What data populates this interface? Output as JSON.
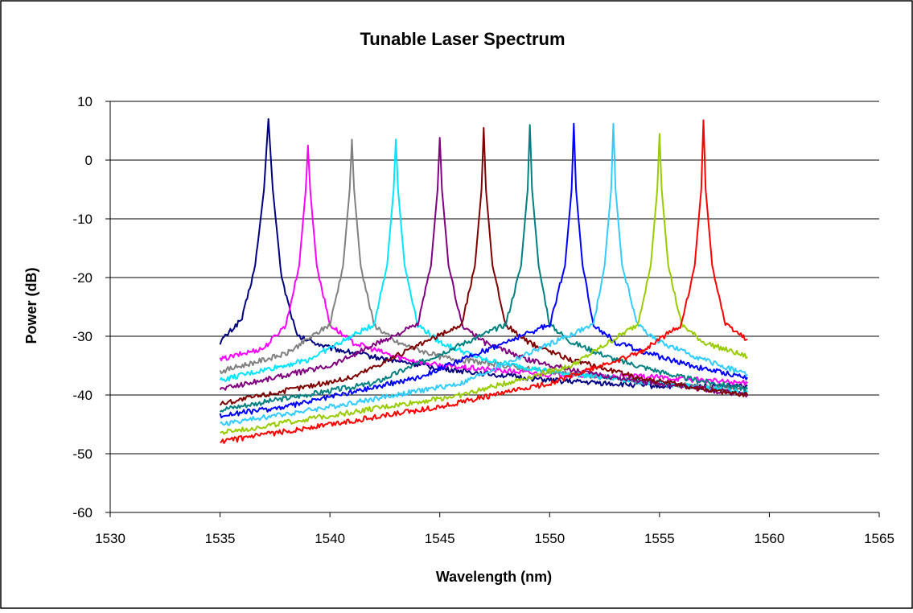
{
  "chart_data": {
    "type": "line",
    "title": "Tunable Laser Spectrum",
    "xlabel": "Wavelength (nm)",
    "ylabel": "Power (dB)",
    "xlim": [
      1530,
      1565
    ],
    "ylim": [
      -60,
      10
    ],
    "xticks": [
      1530,
      1535,
      1540,
      1545,
      1550,
      1555,
      1560,
      1565
    ],
    "yticks": [
      -60,
      -50,
      -40,
      -30,
      -20,
      -10,
      0,
      10
    ],
    "x_tick_labels": [
      "1530",
      "1535",
      "1540",
      "1545",
      "1550",
      "1555",
      "1560",
      "1565"
    ],
    "y_tick_labels": [
      "-60",
      "-50",
      "-40",
      "-30",
      "-20",
      "-10",
      "0",
      "10"
    ],
    "grid": "horizontal",
    "legend": "none",
    "series": [
      {
        "color": "#000080",
        "peak_x": 1537.2,
        "peak_y": 7.0,
        "x": [
          1535,
          1536,
          1536.6,
          1537.0,
          1537.2,
          1537.4,
          1537.8,
          1538.5,
          1540,
          1542,
          1545,
          1550,
          1555,
          1559
        ],
        "y": [
          -31,
          -27,
          -18,
          -5,
          7.0,
          -5,
          -20,
          -30,
          -32,
          -33.5,
          -35.5,
          -37.5,
          -38.5,
          -38.5
        ]
      },
      {
        "color": "#FF00FF",
        "peak_x": 1539.0,
        "peak_y": 2.5,
        "x": [
          1535,
          1537,
          1538,
          1538.6,
          1538.9,
          1539.0,
          1539.1,
          1539.4,
          1540,
          1541,
          1543,
          1545,
          1550,
          1555,
          1559
        ],
        "y": [
          -34,
          -32,
          -28,
          -18,
          -5,
          2.5,
          -5,
          -18,
          -28,
          -31,
          -33.5,
          -35,
          -36.5,
          -37,
          -38
        ]
      },
      {
        "color": "#808080",
        "peak_x": 1541.0,
        "peak_y": 3.5,
        "x": [
          1535,
          1538,
          1540,
          1540.6,
          1540.9,
          1541.0,
          1541.1,
          1541.4,
          1542,
          1543,
          1545,
          1550,
          1555,
          1559
        ],
        "y": [
          -36,
          -33,
          -28,
          -18,
          -5,
          3.5,
          -5,
          -18,
          -28,
          -31,
          -33.5,
          -36,
          -38,
          -39
        ]
      },
      {
        "color": "#00E5FF",
        "peak_x": 1543.0,
        "peak_y": 3.5,
        "x": [
          1535,
          1539,
          1542,
          1542.6,
          1542.9,
          1543.0,
          1543.1,
          1543.4,
          1544,
          1545,
          1547,
          1550,
          1555,
          1559
        ],
        "y": [
          -37.5,
          -34,
          -28,
          -18,
          -5,
          3.5,
          -5,
          -18,
          -28,
          -31,
          -34,
          -36,
          -38,
          -39.5
        ]
      },
      {
        "color": "#800080",
        "peak_x": 1545.0,
        "peak_y": 3.8,
        "x": [
          1535,
          1540,
          1544,
          1544.6,
          1544.9,
          1545.0,
          1545.1,
          1545.4,
          1546,
          1547,
          1549,
          1552,
          1556,
          1559
        ],
        "y": [
          -39,
          -35,
          -28,
          -18,
          -5,
          3.8,
          -5,
          -18,
          -28,
          -31,
          -34,
          -36.5,
          -38.5,
          -40
        ]
      },
      {
        "color": "#800000",
        "peak_x": 1547.0,
        "peak_y": 5.5,
        "x": [
          1535,
          1541,
          1546,
          1546.6,
          1546.9,
          1547.0,
          1547.1,
          1547.4,
          1548,
          1549,
          1551,
          1554,
          1557,
          1559
        ],
        "y": [
          -41.5,
          -37,
          -28,
          -18,
          -5,
          5.5,
          -5,
          -18,
          -28,
          -31,
          -34,
          -37,
          -39,
          -40
        ]
      },
      {
        "color": "#008080",
        "peak_x": 1549.1,
        "peak_y": 6.0,
        "x": [
          1535,
          1542,
          1548,
          1548.7,
          1549.0,
          1549.1,
          1549.2,
          1549.5,
          1550,
          1551,
          1553,
          1556,
          1559
        ],
        "y": [
          -42.5,
          -38,
          -28,
          -18,
          -5,
          6.0,
          -5,
          -18,
          -28,
          -31,
          -34,
          -37,
          -39
        ]
      },
      {
        "color": "#0000FF",
        "peak_x": 1551.1,
        "peak_y": 6.2,
        "x": [
          1535,
          1538,
          1544,
          1550,
          1550.7,
          1551.0,
          1551.1,
          1551.2,
          1551.5,
          1552,
          1553,
          1555,
          1557,
          1559
        ],
        "y": [
          -43.5,
          -42,
          -37,
          -28,
          -18,
          -5,
          6.2,
          -5,
          -18,
          -28,
          -31,
          -33.5,
          -35.5,
          -37
        ]
      },
      {
        "color": "#33CCFF",
        "peak_x": 1552.9,
        "peak_y": 6.2,
        "x": [
          1535,
          1540,
          1546,
          1552,
          1552.5,
          1552.8,
          1552.9,
          1553.0,
          1553.3,
          1554,
          1555,
          1557,
          1559
        ],
        "y": [
          -45,
          -42,
          -38,
          -28,
          -18,
          -5,
          6.2,
          -5,
          -18,
          -28,
          -31,
          -34,
          -36.5
        ]
      },
      {
        "color": "#99CC00",
        "peak_x": 1555.0,
        "peak_y": 4.5,
        "x": [
          1535,
          1540,
          1546,
          1551,
          1554,
          1554.6,
          1554.9,
          1555.0,
          1555.1,
          1555.4,
          1556,
          1557,
          1559
        ],
        "y": [
          -46.5,
          -43.5,
          -40,
          -35,
          -28,
          -18,
          -5,
          4.5,
          -5,
          -18,
          -28,
          -31,
          -33.5
        ]
      },
      {
        "color": "#FF0000",
        "peak_x": 1557.0,
        "peak_y": 6.8,
        "x": [
          1535,
          1540,
          1545,
          1550,
          1554,
          1556,
          1556.6,
          1556.9,
          1557.0,
          1557.1,
          1557.4,
          1558,
          1559
        ],
        "y": [
          -48,
          -45,
          -42,
          -38,
          -33,
          -28,
          -18,
          -5,
          6.8,
          -5,
          -18,
          -28,
          -30.5
        ]
      }
    ]
  }
}
